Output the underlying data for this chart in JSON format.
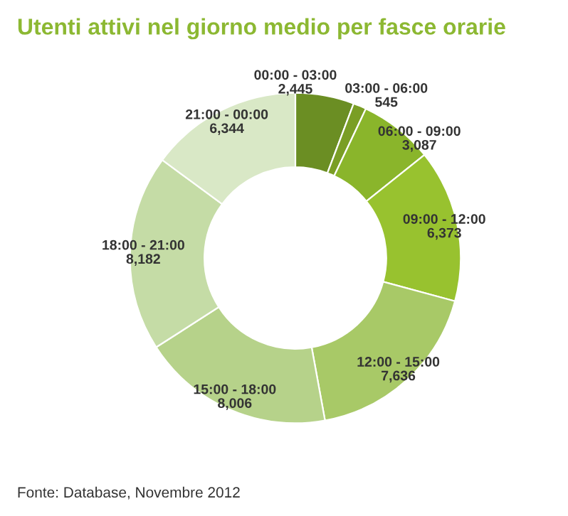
{
  "chart_data": {
    "type": "donut",
    "title": "Utenti attivi nel giorno medio per fasce orarie",
    "categories": [
      "00:00 - 03:00",
      "03:00 - 06:00",
      "06:00 - 09:00",
      "09:00 - 12:00",
      "12:00 - 15:00",
      "15:00 - 18:00",
      "18:00 - 21:00",
      "21:00 - 00:00"
    ],
    "values": [
      2445,
      545,
      3087,
      6373,
      7636,
      8006,
      8182,
      6344
    ],
    "value_labels": [
      "2,445",
      "545",
      "3,087",
      "6,373",
      "7,636",
      "8,006",
      "8,182",
      "6,344"
    ],
    "colors": [
      "#6b8e23",
      "#7a9e25",
      "#8ab52b",
      "#98c22f",
      "#a8c967",
      "#b6d28a",
      "#c5dca6",
      "#d9e8c6"
    ],
    "annotations": [
      "Fonte: Database, Novembre 2012"
    ],
    "legend": false
  }
}
